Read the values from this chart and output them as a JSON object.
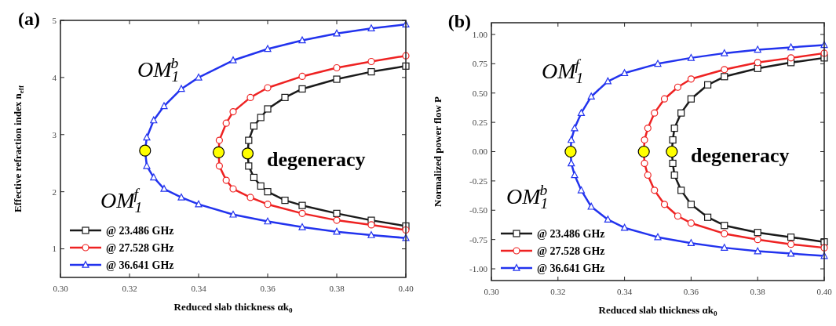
{
  "chart_data": [
    {
      "type": "line",
      "title": "(a)",
      "xlabel": "Reduced slab thickness αk$_{0}$",
      "ylabel": "Effective refraction index n$_{eff}$",
      "xlim": [
        0.3,
        0.4
      ],
      "ylim": [
        0.5,
        5
      ],
      "xticks": [
        {
          "value": 0.3,
          "label": "0.30"
        },
        {
          "value": 0.32,
          "label": "0.32"
        },
        {
          "value": 0.34,
          "label": "0.34"
        },
        {
          "value": 0.36,
          "label": "0.36"
        },
        {
          "value": 0.38,
          "label": "0.38"
        },
        {
          "value": 0.4,
          "label": "0.40"
        }
      ],
      "yticks": [
        1,
        2,
        3,
        4,
        5
      ],
      "grid": false,
      "legend": "bottom left",
      "line_style": "solid",
      "series": [
        {
          "name": "@ 23.486 GHz",
          "color": "#1a1a1a",
          "marker": "square",
          "x": [
            0.4,
            0.39,
            0.38,
            0.37,
            0.365,
            0.36,
            0.358,
            0.356,
            0.3545,
            0.3542,
            0.3545,
            0.356,
            0.358,
            0.36,
            0.365,
            0.37,
            0.38,
            0.39,
            0.4
          ],
          "values": [
            4.2,
            4.1,
            3.97,
            3.8,
            3.65,
            3.45,
            3.3,
            3.15,
            2.9,
            2.67,
            2.45,
            2.25,
            2.1,
            2.0,
            1.85,
            1.76,
            1.62,
            1.5,
            1.4
          ]
        },
        {
          "name": "@ 27.528 GHz",
          "color": "#ee2222",
          "marker": "circle",
          "x": [
            0.4,
            0.39,
            0.38,
            0.37,
            0.36,
            0.355,
            0.35,
            0.348,
            0.346,
            0.3458,
            0.346,
            0.348,
            0.35,
            0.355,
            0.36,
            0.37,
            0.38,
            0.39,
            0.4
          ],
          "values": [
            4.38,
            4.28,
            4.17,
            4.02,
            3.82,
            3.65,
            3.4,
            3.2,
            2.9,
            2.69,
            2.45,
            2.2,
            2.05,
            1.9,
            1.78,
            1.62,
            1.5,
            1.42,
            1.33
          ]
        },
        {
          "name": "@ 36.641 GHz",
          "color": "#2233ee",
          "marker": "triangle",
          "x": [
            0.4,
            0.39,
            0.38,
            0.37,
            0.36,
            0.35,
            0.34,
            0.335,
            0.33,
            0.327,
            0.325,
            0.3245,
            0.325,
            0.327,
            0.33,
            0.335,
            0.34,
            0.35,
            0.36,
            0.37,
            0.38,
            0.39,
            0.4
          ],
          "values": [
            4.93,
            4.86,
            4.77,
            4.65,
            4.5,
            4.3,
            4.0,
            3.8,
            3.5,
            3.25,
            2.95,
            2.72,
            2.45,
            2.25,
            2.05,
            1.9,
            1.78,
            1.6,
            1.48,
            1.38,
            1.3,
            1.24,
            1.19
          ]
        },
        {
          "type": "scatter",
          "color": "#ffff00",
          "marker": "circle",
          "x": [
            0.3245,
            0.3458,
            0.3542
          ],
          "values": [
            2.72,
            2.69,
            2.67
          ]
        }
      ],
      "annotations": [
        "OM$_{1}$$^{b}$",
        "OM$_{1}$$^{f}$",
        "degeneracy"
      ]
    },
    {
      "type": "line",
      "title": "(b)",
      "xlabel": "Reduced slab thickness αk$_{0}$",
      "ylabel": "Normalized power flow P",
      "xlim": [
        0.3,
        0.4
      ],
      "ylim": [
        -1.1,
        1.1
      ],
      "xticks": [
        {
          "value": 0.3,
          "label": "0.30"
        },
        {
          "value": 0.32,
          "label": "0.32"
        },
        {
          "value": 0.34,
          "label": "0.34"
        },
        {
          "value": 0.36,
          "label": "0.36"
        },
        {
          "value": 0.38,
          "label": "0.38"
        },
        {
          "value": 0.4,
          "label": "0.40"
        }
      ],
      "yticks": [
        {
          "value": 1,
          "label": "1.00"
        },
        {
          "value": 0.75,
          "label": "0.75"
        },
        {
          "value": 0.5,
          "label": "0.50"
        },
        {
          "value": 0.25,
          "label": "0.25"
        },
        {
          "value": 0,
          "label": "0.00"
        },
        {
          "value": -0.25,
          "label": "-0.25"
        },
        {
          "value": -0.5,
          "label": "-0.50"
        },
        {
          "value": -0.75,
          "label": "-0.75"
        },
        {
          "value": -1,
          "label": "-1.00"
        }
      ],
      "grid": false,
      "legend": "bottom left",
      "line_style": "solid",
      "series": [
        {
          "name": "@ 23.486 GHz",
          "color": "#1a1a1a",
          "marker": "square",
          "x": [
            0.4,
            0.39,
            0.38,
            0.37,
            0.365,
            0.36,
            0.357,
            0.355,
            0.3545,
            0.3542,
            0.3545,
            0.355,
            0.357,
            0.36,
            0.365,
            0.37,
            0.38,
            0.39,
            0.4
          ],
          "values": [
            0.8,
            0.76,
            0.71,
            0.64,
            0.57,
            0.45,
            0.33,
            0.2,
            0.1,
            0,
            -0.1,
            -0.2,
            -0.33,
            -0.45,
            -0.56,
            -0.63,
            -0.69,
            -0.73,
            -0.77
          ]
        },
        {
          "name": "@ 27.528 GHz",
          "color": "#ee2222",
          "marker": "circle",
          "x": [
            0.4,
            0.39,
            0.38,
            0.37,
            0.36,
            0.356,
            0.352,
            0.349,
            0.347,
            0.346,
            0.3458,
            0.346,
            0.347,
            0.349,
            0.352,
            0.356,
            0.36,
            0.37,
            0.38,
            0.39,
            0.4
          ],
          "values": [
            0.84,
            0.8,
            0.76,
            0.7,
            0.62,
            0.55,
            0.45,
            0.33,
            0.2,
            0.1,
            0,
            -0.1,
            -0.2,
            -0.33,
            -0.45,
            -0.55,
            -0.61,
            -0.7,
            -0.75,
            -0.79,
            -0.82
          ]
        },
        {
          "name": "@ 36.641 GHz",
          "color": "#2233ee",
          "marker": "triangle",
          "x": [
            0.4,
            0.39,
            0.38,
            0.37,
            0.36,
            0.35,
            0.34,
            0.335,
            0.33,
            0.327,
            0.325,
            0.324,
            0.3238,
            0.324,
            0.325,
            0.327,
            0.33,
            0.335,
            0.34,
            0.35,
            0.36,
            0.37,
            0.38,
            0.39,
            0.4
          ],
          "values": [
            0.91,
            0.89,
            0.87,
            0.84,
            0.8,
            0.75,
            0.67,
            0.6,
            0.47,
            0.33,
            0.2,
            0.1,
            0,
            -0.1,
            -0.2,
            -0.33,
            -0.47,
            -0.58,
            -0.65,
            -0.73,
            -0.78,
            -0.82,
            -0.85,
            -0.87,
            -0.89
          ]
        },
        {
          "type": "scatter",
          "color": "#ffff00",
          "marker": "circle",
          "x": [
            0.3238,
            0.3458,
            0.3542
          ],
          "values": [
            0,
            0,
            0
          ]
        }
      ],
      "annotations": [
        "OM$_{1}$$^{f}$",
        "OM$_{1}$$^{b}$",
        "degeneracy"
      ]
    }
  ]
}
